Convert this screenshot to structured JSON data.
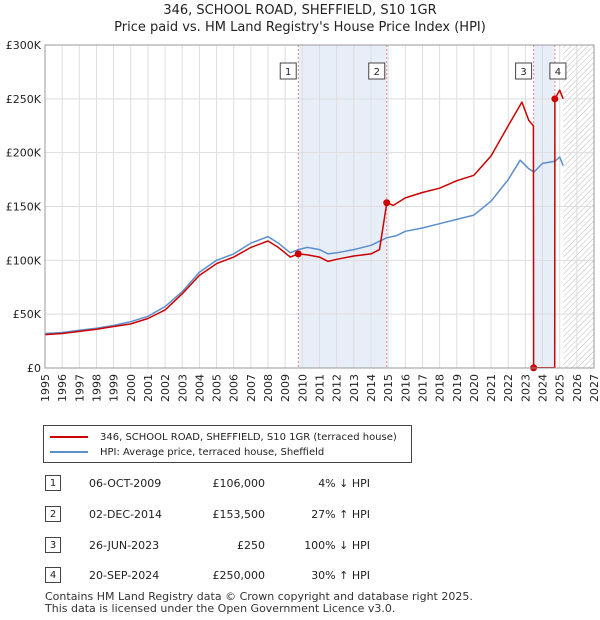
{
  "title_line1": "346, SCHOOL ROAD, SHEFFIELD, S10 1GR",
  "title_line2": "Price paid vs. HM Land Registry's House Price Index (HPI)",
  "colors": {
    "property": "#cc0000",
    "hpi": "#5b8fcc",
    "band": "#e8eef8",
    "vline": "#e88a8a",
    "grid": "#dddddd"
  },
  "legend": {
    "property": "346, SCHOOL ROAD, SHEFFIELD, S10 1GR (terraced house)",
    "hpi": "HPI: Average price, terraced house, Sheffield"
  },
  "transactions": [
    {
      "num": "1",
      "date": "06-OCT-2009",
      "price": "£106,000",
      "hpi": "4% ↓ HPI"
    },
    {
      "num": "2",
      "date": "02-DEC-2014",
      "price": "£153,500",
      "hpi": "27% ↑ HPI"
    },
    {
      "num": "3",
      "date": "26-JUN-2023",
      "price": "£250",
      "hpi": "100% ↓ HPI"
    },
    {
      "num": "4",
      "date": "20-SEP-2024",
      "price": "£250,000",
      "hpi": "30% ↑ HPI"
    }
  ],
  "footer": {
    "line1": "Contains HM Land Registry data © Crown copyright and database right 2025.",
    "line2": "This data is licensed under the Open Government Licence v3.0."
  },
  "chart_data": {
    "type": "line",
    "title": "346, SCHOOL ROAD, SHEFFIELD, S10 1GR",
    "subtitle": "Price paid vs. HM Land Registry's House Price Index (HPI)",
    "xlabel": "",
    "ylabel": "",
    "xlim": [
      1995,
      2027
    ],
    "ylim": [
      0,
      300000
    ],
    "x_ticks": [
      1995,
      1996,
      1997,
      1998,
      1999,
      2000,
      2001,
      2002,
      2003,
      2004,
      2005,
      2006,
      2007,
      2008,
      2009,
      2010,
      2011,
      2012,
      2013,
      2014,
      2015,
      2016,
      2017,
      2018,
      2019,
      2020,
      2021,
      2022,
      2023,
      2024,
      2025,
      2026,
      2027
    ],
    "y_ticks": [
      {
        "value": 0,
        "label": "£0"
      },
      {
        "value": 50000,
        "label": "£50K"
      },
      {
        "value": 100000,
        "label": "£100K"
      },
      {
        "value": 150000,
        "label": "£150K"
      },
      {
        "value": 200000,
        "label": "£200K"
      },
      {
        "value": 250000,
        "label": "£250K"
      },
      {
        "value": 300000,
        "label": "£300K"
      }
    ],
    "grid": true,
    "shaded_bands": [
      {
        "x0": 2009.76,
        "x1": 2014.92
      },
      {
        "x0": 2023.48,
        "x1": 2024.72
      }
    ],
    "hatched_from": 2025.2,
    "markers": [
      {
        "label": "1",
        "x": 2009.76,
        "y": 106000
      },
      {
        "label": "2",
        "x": 2014.92,
        "y": 153500
      },
      {
        "label": "3",
        "x": 2023.48,
        "y": 250
      },
      {
        "label": "4",
        "x": 2024.72,
        "y": 250000
      }
    ],
    "series": [
      {
        "name": "346, SCHOOL ROAD, SHEFFIELD, S10 1GR (terraced house)",
        "color": "#cc0000",
        "points": [
          [
            1995,
            31000
          ],
          [
            1996,
            32000
          ],
          [
            1997,
            34000
          ],
          [
            1998,
            36000
          ],
          [
            1999,
            38500
          ],
          [
            2000,
            41000
          ],
          [
            2001,
            46000
          ],
          [
            2002,
            54000
          ],
          [
            2003,
            69000
          ],
          [
            2004,
            86000
          ],
          [
            2005,
            97000
          ],
          [
            2006,
            103000
          ],
          [
            2007,
            112000
          ],
          [
            2008,
            118000
          ],
          [
            2008.6,
            112000
          ],
          [
            2009.3,
            103000
          ],
          [
            2009.76,
            106000
          ],
          [
            2010.3,
            105000
          ],
          [
            2011,
            103000
          ],
          [
            2011.5,
            99000
          ],
          [
            2012,
            101000
          ],
          [
            2013,
            104000
          ],
          [
            2014,
            106000
          ],
          [
            2014.5,
            110000
          ],
          [
            2014.92,
            153500
          ],
          [
            2015.3,
            151000
          ],
          [
            2016,
            158000
          ],
          [
            2017,
            163000
          ],
          [
            2018,
            167000
          ],
          [
            2019,
            174000
          ],
          [
            2020,
            179000
          ],
          [
            2021,
            197000
          ],
          [
            2022,
            225000
          ],
          [
            2022.8,
            247000
          ],
          [
            2023.2,
            230000
          ],
          [
            2023.47,
            225000
          ],
          [
            2023.48,
            250
          ],
          [
            2024.71,
            250
          ],
          [
            2024.72,
            250000
          ],
          [
            2025,
            258000
          ],
          [
            2025.2,
            250000
          ]
        ]
      },
      {
        "name": "HPI: Average price, terraced house, Sheffield",
        "color": "#5b8fcc",
        "points": [
          [
            1995,
            32000
          ],
          [
            1996,
            33000
          ],
          [
            1997,
            35000
          ],
          [
            1998,
            37000
          ],
          [
            1999,
            39500
          ],
          [
            2000,
            43000
          ],
          [
            2001,
            48000
          ],
          [
            2002,
            57000
          ],
          [
            2003,
            71000
          ],
          [
            2004,
            89000
          ],
          [
            2005,
            100000
          ],
          [
            2006,
            106000
          ],
          [
            2007,
            116000
          ],
          [
            2008,
            122000
          ],
          [
            2008.6,
            116000
          ],
          [
            2009.3,
            107000
          ],
          [
            2009.76,
            110000
          ],
          [
            2010.3,
            112000
          ],
          [
            2011,
            110000
          ],
          [
            2011.5,
            106000
          ],
          [
            2012,
            107000
          ],
          [
            2013,
            110000
          ],
          [
            2014,
            114000
          ],
          [
            2014.92,
            121000
          ],
          [
            2015.5,
            123000
          ],
          [
            2016,
            127000
          ],
          [
            2017,
            130000
          ],
          [
            2018,
            134000
          ],
          [
            2019,
            138000
          ],
          [
            2020,
            142000
          ],
          [
            2021,
            155000
          ],
          [
            2022,
            175000
          ],
          [
            2022.7,
            193000
          ],
          [
            2023.2,
            185000
          ],
          [
            2023.5,
            182000
          ],
          [
            2024,
            190000
          ],
          [
            2024.72,
            192000
          ],
          [
            2025,
            196000
          ],
          [
            2025.2,
            188000
          ]
        ]
      }
    ]
  }
}
